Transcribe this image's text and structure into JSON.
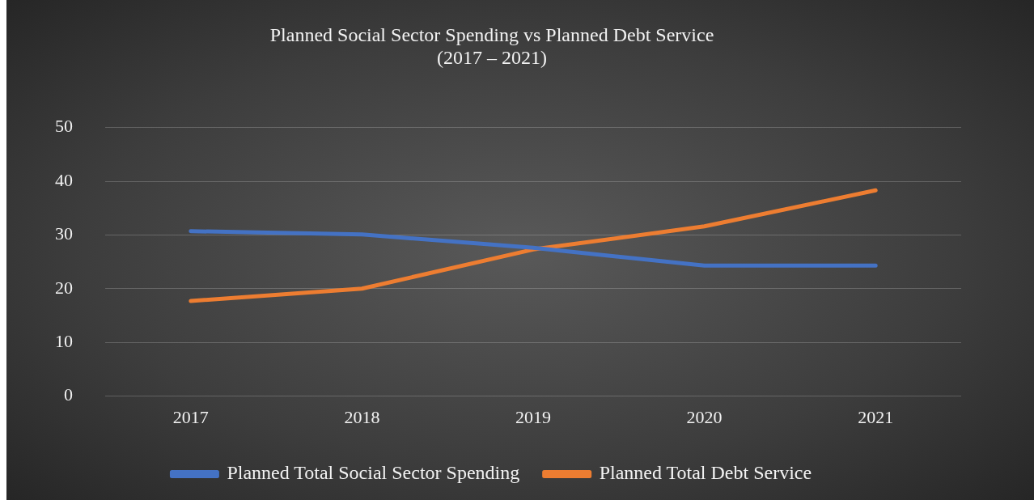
{
  "chart_data": {
    "type": "line",
    "title": "Planned Social Sector Spending vs Planned Debt Service\n(2017 – 2021)",
    "categories": [
      "2017",
      "2018",
      "2019",
      "2020",
      "2021"
    ],
    "series": [
      {
        "name": "Planned Total Social Sector Spending",
        "color": "#4472c4",
        "values": [
          30.7,
          30.1,
          27.6,
          24.3,
          24.3
        ]
      },
      {
        "name": "Planned Total Debt Service",
        "color": "#ed7d31",
        "values": [
          17.7,
          20.0,
          27.3,
          31.6,
          38.3
        ]
      }
    ],
    "ylim": [
      0,
      50
    ],
    "yticks": [
      0,
      10,
      20,
      30,
      40,
      50
    ],
    "grid": "y",
    "legend": "bottom",
    "marker": "none",
    "line_style": "solid"
  }
}
